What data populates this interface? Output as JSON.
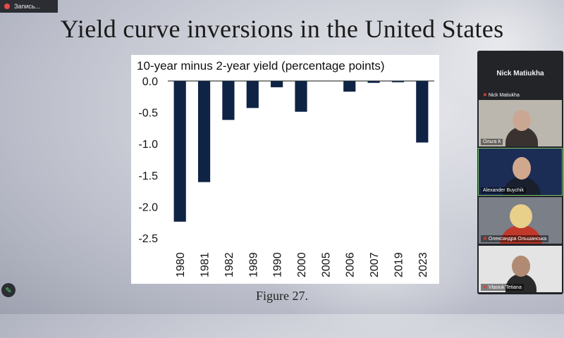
{
  "recording": {
    "label": "Запись..."
  },
  "slide": {
    "title": "Yield curve inversions in the United States",
    "caption": "Figure 27."
  },
  "chart_data": {
    "type": "bar",
    "title": "10-year minus 2-year yield (percentage points)",
    "categories": [
      "1980",
      "1981",
      "1982",
      "1989",
      "1990",
      "2000",
      "2005",
      "2006",
      "2007",
      "2019",
      "2023"
    ],
    "values": [
      -2.24,
      -1.61,
      -0.62,
      -0.43,
      -0.1,
      -0.49,
      0.0,
      -0.17,
      -0.03,
      -0.02,
      -0.98
    ],
    "ylim": [
      -2.5,
      0.0
    ],
    "yticks": [
      "0.0",
      "-0.5",
      "-1.0",
      "-1.5",
      "-2.0",
      "-2.5"
    ],
    "bar_color": "#0f2344",
    "grid": false
  },
  "meeting": {
    "host_name": "Nick Matiukha",
    "participants": [
      {
        "name": "Nick Matiukha"
      },
      {
        "name": "Ольга К"
      },
      {
        "name": "Alexander Buychik"
      },
      {
        "name": "Олександра Ольшанська"
      },
      {
        "name": "Vlasiuk Tetiana"
      }
    ]
  },
  "icons": {
    "record": "record-dot-icon",
    "mic_off": "mic-off-icon",
    "pencil": "pencil-icon"
  }
}
